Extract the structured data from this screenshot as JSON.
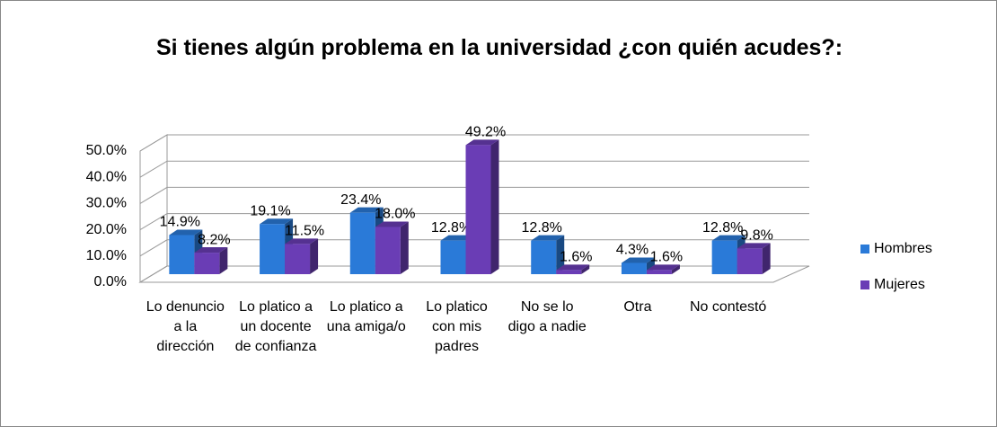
{
  "chart_data": {
    "type": "bar3d",
    "title": "Si tienes algún problema en la universidad ¿con quién acudes?:",
    "categories": [
      "Lo denuncio a la dirección",
      "Lo platico a un docente de confianza",
      "Lo platico a una amiga/o",
      "Lo platico con mis padres",
      "No se lo digo a nadie",
      "Otra",
      "No contestó"
    ],
    "series": [
      {
        "name": "Hombres",
        "color": "#2a7ad8",
        "values": [
          14.9,
          19.1,
          23.4,
          12.8,
          12.8,
          4.3,
          12.8
        ],
        "value_labels": [
          "14.9%",
          "19.1%",
          "23.4%",
          "12.8%",
          "12.8%",
          "4.3%",
          "12.8%"
        ]
      },
      {
        "name": "Mujeres",
        "color": "#6a3db5",
        "values": [
          8.2,
          11.5,
          18.0,
          49.2,
          1.6,
          1.6,
          9.8
        ],
        "value_labels": [
          "8.2%",
          "11.5%",
          "18.0%",
          "49.2%",
          "1.6%",
          "1.6%",
          "9.8%"
        ]
      }
    ],
    "ylim": [
      0,
      50
    ],
    "yticks": [
      {
        "value": 0,
        "label": "0.0%"
      },
      {
        "value": 10,
        "label": "10.0%"
      },
      {
        "value": 20,
        "label": "20.0%"
      },
      {
        "value": 30,
        "label": "30.0%"
      },
      {
        "value": 40,
        "label": "40.0%"
      },
      {
        "value": 50,
        "label": "50.0%"
      }
    ],
    "grid": true,
    "legend": "right"
  }
}
